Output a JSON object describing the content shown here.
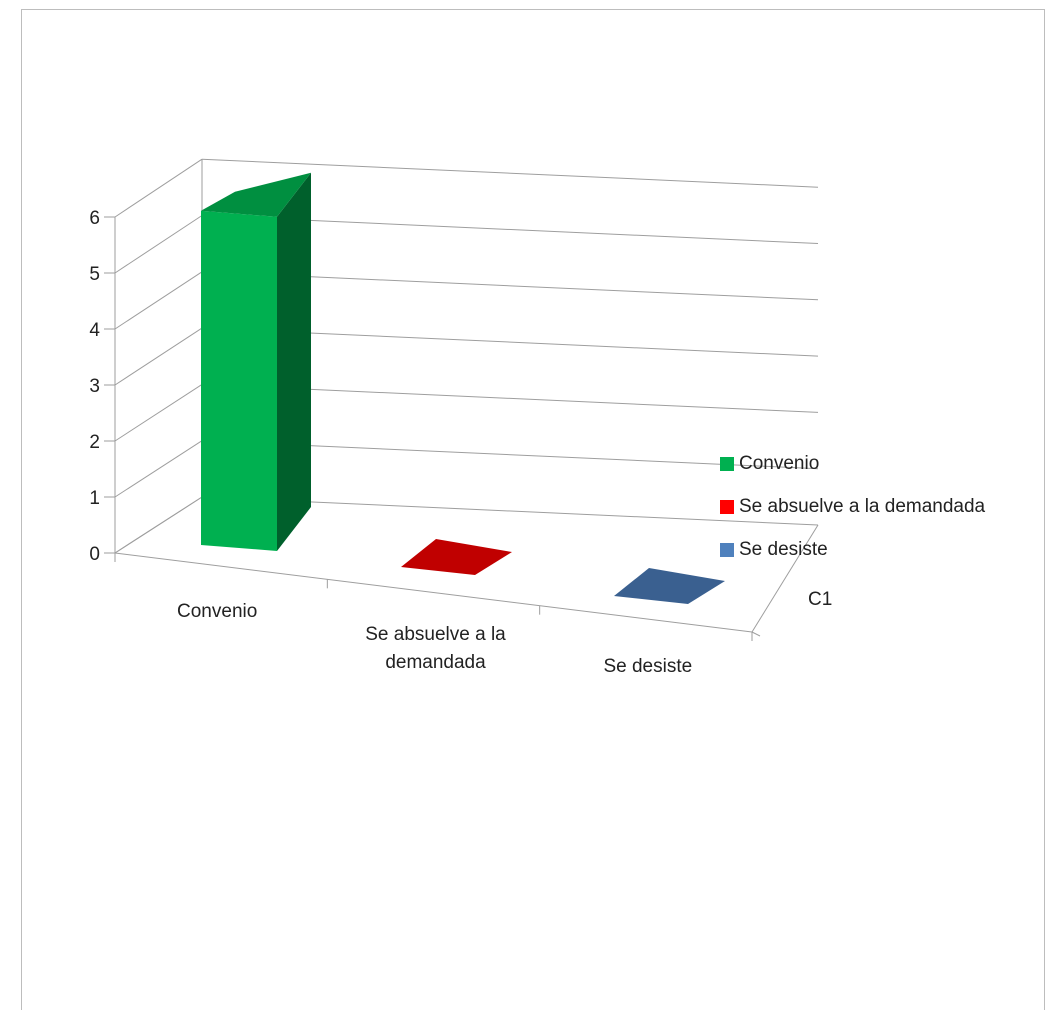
{
  "chart_data": {
    "type": "bar",
    "title": "",
    "xlabel": "",
    "ylabel": "",
    "categories": [
      "Convenio",
      "Se absuelve a la demandada",
      "Se desiste"
    ],
    "category_labels": [
      [
        "Convenio"
      ],
      [
        "Se absuelve a la",
        "demandada"
      ],
      [
        "Se desiste"
      ]
    ],
    "series": [
      {
        "values": [
          6,
          0,
          0
        ]
      }
    ],
    "depth_label": "C1",
    "ylim": [
      0,
      6
    ],
    "yticks": [
      0,
      1,
      2,
      3,
      4,
      5,
      6
    ],
    "grid": true,
    "three_d": true,
    "legend": {
      "placement": "right",
      "entries": [
        "Convenio",
        "Se absuelve a la demandada",
        "Se desiste"
      ]
    },
    "colors": [
      "#00b050",
      "#ff0000",
      "#4f81bd"
    ],
    "side_colors": [
      "#00602c",
      "#a00000",
      "#2f4f7a"
    ],
    "top_colors": [
      "#008f40",
      "#c00000",
      "#3a6090"
    ]
  }
}
